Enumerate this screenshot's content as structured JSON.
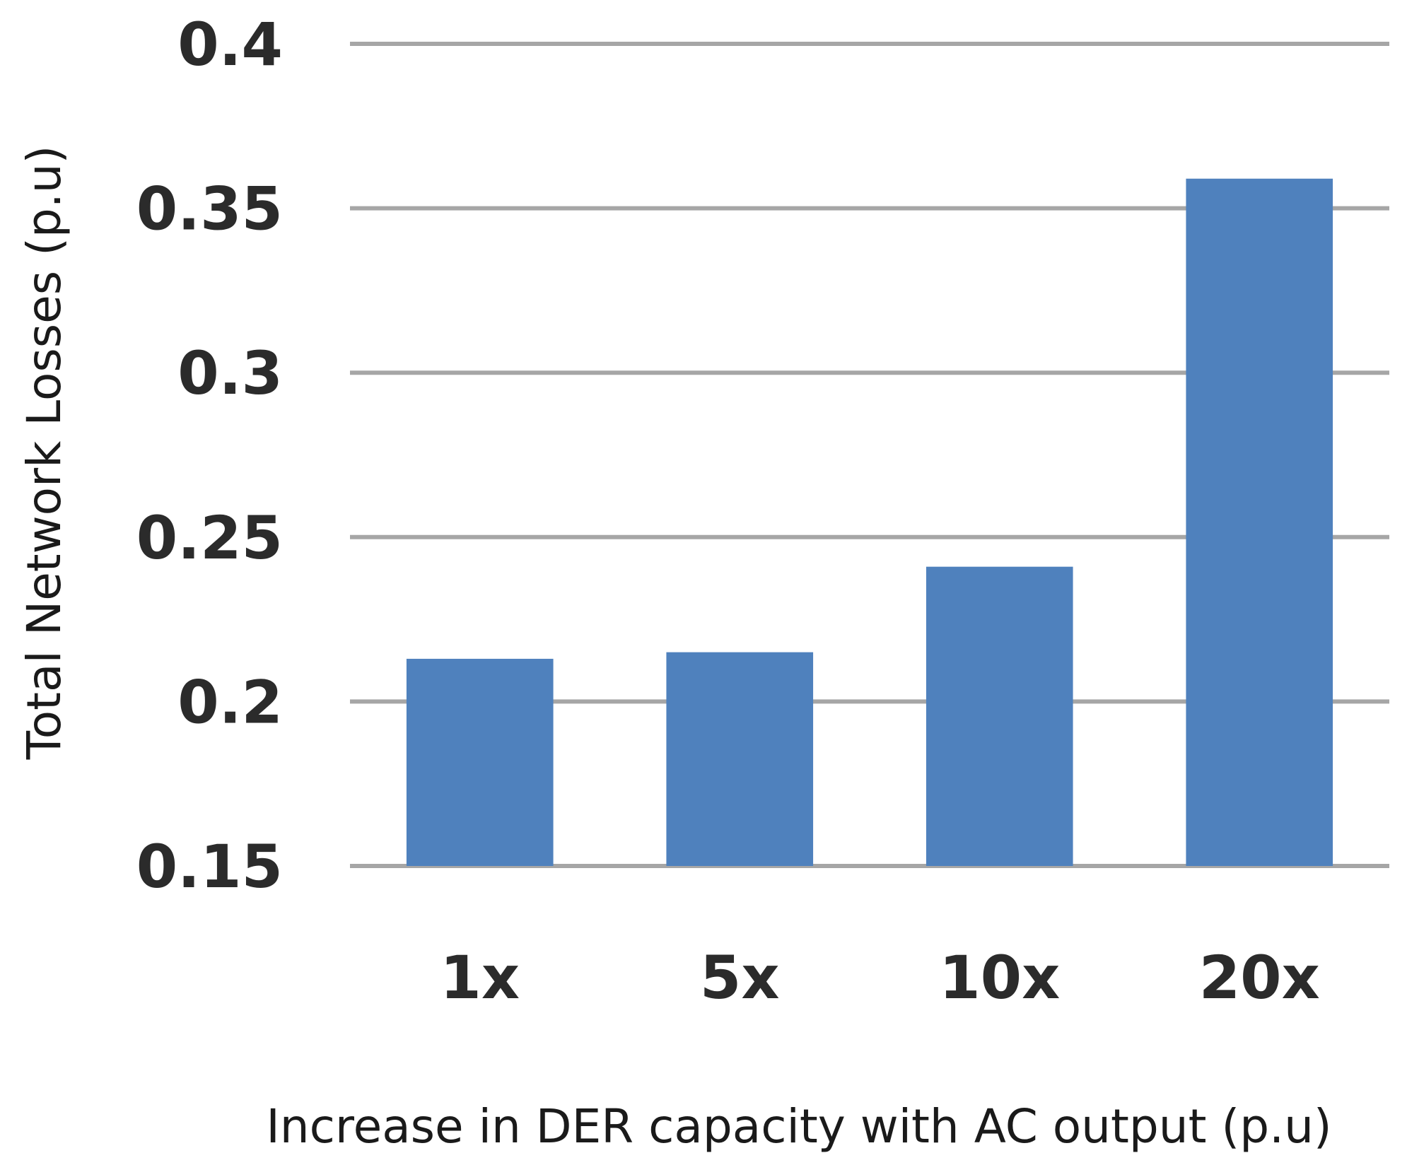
{
  "chart_data": {
    "type": "bar",
    "title": "",
    "categories": [
      "1x",
      "5x",
      "10x",
      "20x"
    ],
    "values": [
      0.213,
      0.215,
      0.241,
      0.359
    ],
    "xlabel": "Increase in DER capacity with AC output (p.u)",
    "ylabel": "Total Network Losses (p.u)",
    "ylim": [
      0.15,
      0.4
    ],
    "yticks": [
      "0.15",
      "0.2",
      "0.25",
      "0.3",
      "0.35",
      "0.4"
    ],
    "grid": true,
    "legend": "none",
    "colors": {
      "bar": "#4f81bd",
      "grid": "#a6a6a6",
      "text": "#2b2b2b"
    }
  }
}
